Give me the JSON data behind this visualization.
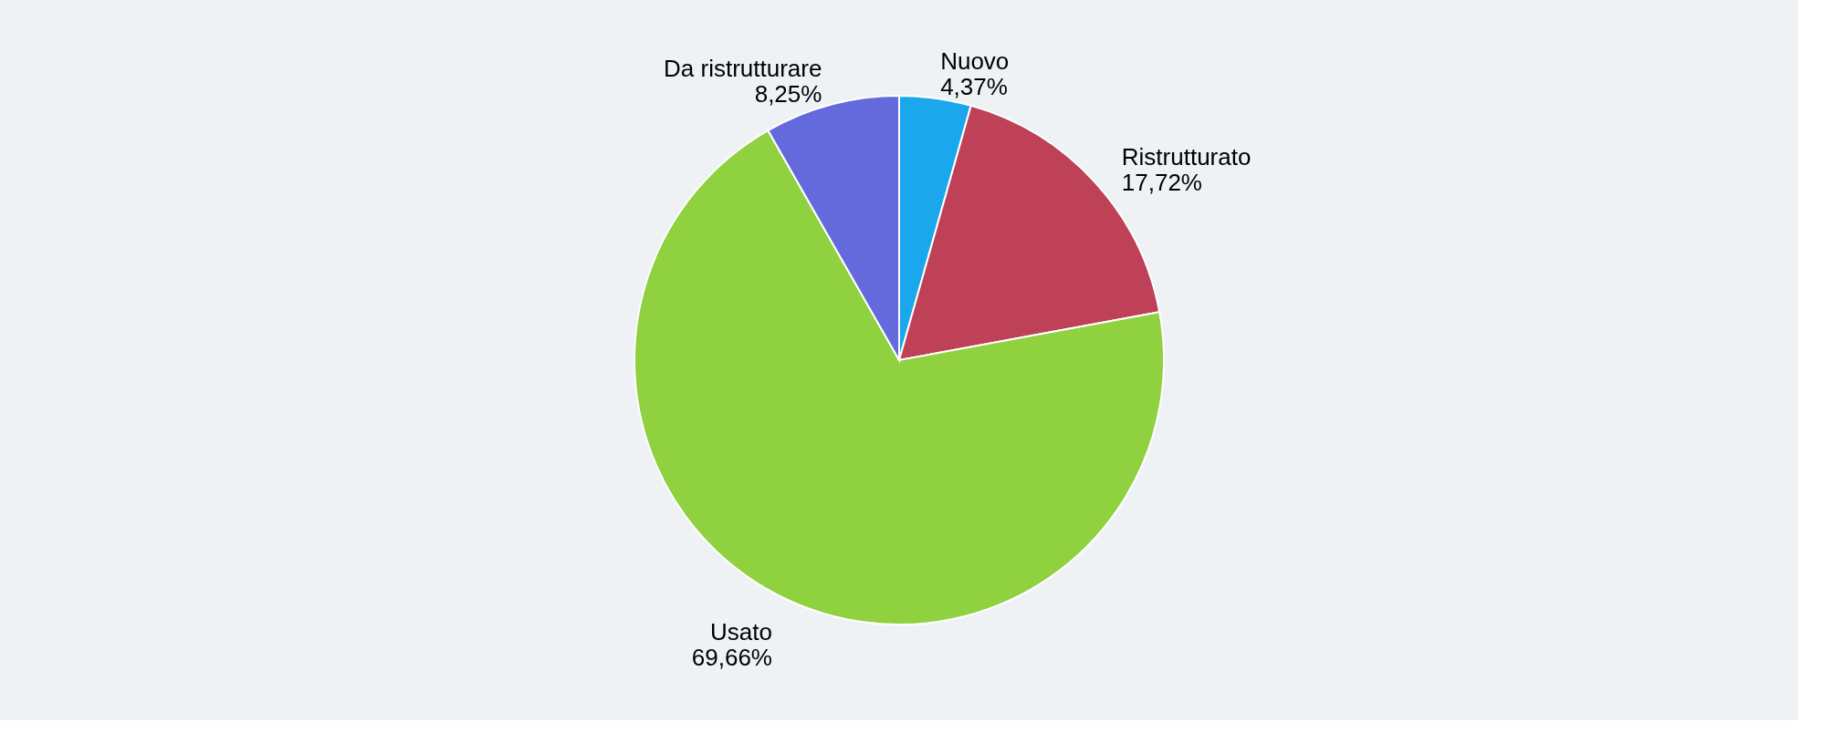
{
  "chart_data": {
    "type": "pie",
    "categories": [
      "Nuovo",
      "Ristrutturato",
      "Usato",
      "Da ristrutturare"
    ],
    "values": [
      4.37,
      17.72,
      69.66,
      8.25
    ],
    "value_labels": [
      "4,37%",
      "17,72%",
      "69,66%",
      "8,25%"
    ],
    "colors": [
      "#1aa7ec",
      "#be4157",
      "#8fd13f",
      "#6469dc"
    ],
    "legend": false
  }
}
